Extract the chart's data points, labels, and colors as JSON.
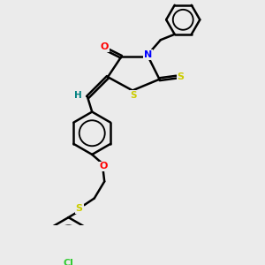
{
  "bg_color": "#ebebeb",
  "bond_color": "#000000",
  "atom_colors": {
    "O": "#ff0000",
    "N": "#0000ff",
    "S": "#cccc00",
    "Cl": "#33cc33",
    "H": "#008080"
  },
  "line_width": 1.8,
  "dbo": 0.07,
  "figsize": [
    3.0,
    3.0
  ],
  "dpi": 100,
  "xlim": [
    0,
    10
  ],
  "ylim": [
    0,
    10
  ]
}
